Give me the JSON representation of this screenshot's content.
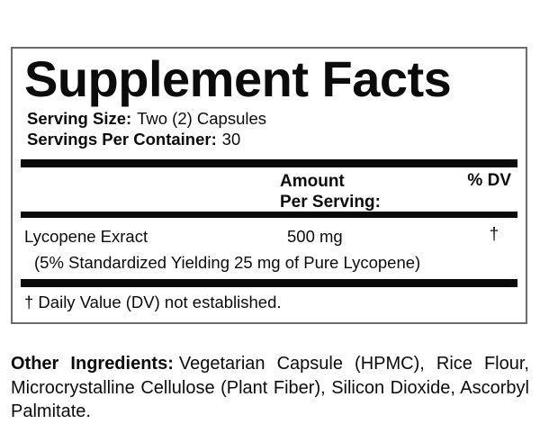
{
  "label": {
    "title": "Supplement Facts",
    "serving_size": {
      "label": "Serving Size:",
      "value": "Two (2) Capsules"
    },
    "servings_per_container": {
      "label": "Servings Per Container:",
      "value": "30"
    },
    "columns": {
      "amount_line1": "Amount",
      "amount_line2": "Per Serving:",
      "dv": "% DV"
    },
    "rows": [
      {
        "name": "Lycopene Exract",
        "amount": "500 mg",
        "dv": "†",
        "note": "(5% Standardized Yielding 25 mg of Pure Lycopene)"
      }
    ],
    "footnote": "† Daily Value (DV) not established."
  },
  "other_ingredients": {
    "label": "Other Ingredients:",
    "text": "Vegetarian Capsule (HPMC), Rice Flour, Microcrystalline Cellulose (Plant Fiber), Silicon Dioxide, Ascorbyl Palmitate."
  },
  "colors": {
    "text": "#0b0b0b",
    "bar": "#0a0a0a",
    "border": "#6b6b6b",
    "background": "#ffffff"
  }
}
